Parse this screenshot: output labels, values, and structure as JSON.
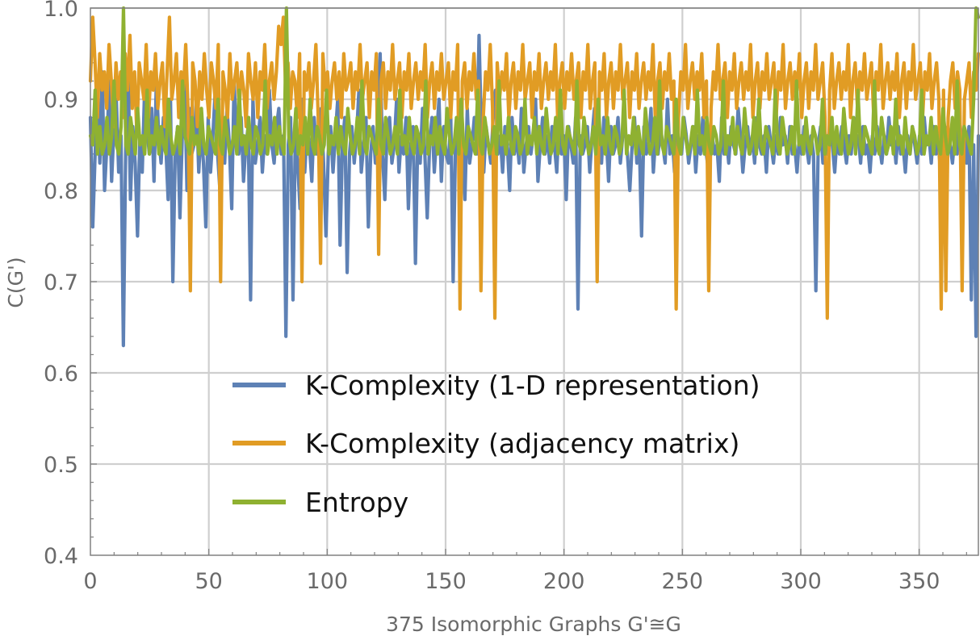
{
  "chart_data": {
    "type": "line",
    "xlabel": "375 Isomorphic Graphs G'≅G",
    "ylabel": "C(G')",
    "xlim": [
      0,
      375
    ],
    "ylim": [
      0.4,
      1.0
    ],
    "x_ticks": [
      0,
      50,
      100,
      150,
      200,
      250,
      300,
      350
    ],
    "y_ticks": [
      0.4,
      0.5,
      0.6,
      0.7,
      0.8,
      0.9,
      1.0
    ],
    "x_tick_labels": [
      "0",
      "50",
      "100",
      "150",
      "200",
      "250",
      "300",
      "350"
    ],
    "y_tick_labels": [
      "0.4",
      "0.5",
      "0.6",
      "0.7",
      "0.8",
      "0.9",
      "1.0"
    ],
    "grid": true,
    "legend_position": "lower-center inside plot",
    "series": [
      {
        "name": "K-Complexity (1-D representation)",
        "color": "#5e81b5",
        "values": [
          0.88,
          0.76,
          0.84,
          0.91,
          0.83,
          0.93,
          0.8,
          0.85,
          0.92,
          0.81,
          0.87,
          0.9,
          0.82,
          0.86,
          0.63,
          0.85,
          0.94,
          0.79,
          0.87,
          0.83,
          0.75,
          0.86,
          0.82,
          0.91,
          0.87,
          0.84,
          0.89,
          0.81,
          0.92,
          0.86,
          0.83,
          0.88,
          0.85,
          0.79,
          0.9,
          0.7,
          0.84,
          0.87,
          0.77,
          0.86,
          0.93,
          0.8,
          0.89,
          0.84,
          0.85,
          0.9,
          0.82,
          0.87,
          0.83,
          0.76,
          0.88,
          0.82,
          0.86,
          0.91,
          0.84,
          0.8,
          0.87,
          0.83,
          0.89,
          0.85,
          0.78,
          0.92,
          0.86,
          0.84,
          0.88,
          0.81,
          0.85,
          0.87,
          0.68,
          0.9,
          0.83,
          0.85,
          0.88,
          0.82,
          0.86,
          0.84,
          0.91,
          0.85,
          0.83,
          0.87,
          0.89,
          0.84,
          0.86,
          0.64,
          0.85,
          0.88,
          0.68,
          0.86,
          0.83,
          0.78,
          0.9,
          0.82,
          0.87,
          0.85,
          0.81,
          0.88,
          0.84,
          0.86,
          0.89,
          0.83,
          0.75,
          0.84,
          0.87,
          0.82,
          0.86,
          0.9,
          0.74,
          0.85,
          0.88,
          0.71,
          0.84,
          0.87,
          0.83,
          0.86,
          0.91,
          0.82,
          0.85,
          0.88,
          0.76,
          0.84,
          0.87,
          0.83,
          0.86,
          0.95,
          0.84,
          0.79,
          0.87,
          0.88,
          0.83,
          0.85,
          0.9,
          0.82,
          0.86,
          0.84,
          0.88,
          0.78,
          0.85,
          0.87,
          0.72,
          0.86,
          0.83,
          0.89,
          0.84,
          0.77,
          0.85,
          0.88,
          0.82,
          0.86,
          0.9,
          0.81,
          0.87,
          0.84,
          0.83,
          0.88,
          0.7,
          0.85,
          0.87,
          0.82,
          0.86,
          0.79,
          0.89,
          0.83,
          0.85,
          0.88,
          0.84,
          0.97,
          0.86,
          0.82,
          0.87,
          0.85,
          0.83,
          0.88,
          0.91,
          0.84,
          0.86,
          0.82,
          0.87,
          0.85,
          0.8,
          0.88,
          0.84,
          0.86,
          0.83,
          0.89,
          0.82,
          0.85,
          0.87,
          0.84,
          0.86,
          0.9,
          0.81,
          0.85,
          0.88,
          0.84,
          0.86,
          0.83,
          0.87,
          0.85,
          0.82,
          0.88,
          0.84,
          0.86,
          0.79,
          0.87,
          0.85,
          0.83,
          0.88,
          0.67,
          0.86,
          0.84,
          0.85,
          0.87,
          0.82,
          0.86,
          0.89,
          0.84,
          0.85,
          0.83,
          0.88,
          0.86,
          0.81,
          0.87,
          0.84,
          0.85,
          0.88,
          0.83,
          0.86,
          0.87,
          0.84,
          0.8,
          0.85,
          0.88,
          0.83,
          0.86,
          0.75,
          0.87,
          0.84,
          0.85,
          0.89,
          0.82,
          0.86,
          0.84,
          0.87,
          0.85,
          0.83,
          0.9,
          0.84,
          0.86,
          0.82,
          0.87,
          0.85,
          0.84,
          0.88,
          0.86,
          0.83,
          0.85,
          0.87,
          0.82,
          0.86,
          0.84,
          0.88,
          0.85,
          0.83,
          0.87,
          0.86,
          0.84,
          0.85,
          0.81,
          0.88,
          0.84,
          0.86,
          0.83,
          0.87,
          0.85,
          0.84,
          0.89,
          0.86,
          0.82,
          0.85,
          0.87,
          0.84,
          0.86,
          0.83,
          0.88,
          0.85,
          0.84,
          0.86,
          0.82,
          0.87,
          0.85,
          0.83,
          0.86,
          0.84,
          0.88,
          0.85,
          0.86,
          0.83,
          0.87,
          0.84,
          0.85,
          0.82,
          0.86,
          0.84,
          0.87,
          0.85,
          0.83,
          0.86,
          0.84,
          0.69,
          0.85,
          0.87,
          0.83,
          0.86,
          0.84,
          0.88,
          0.85,
          0.82,
          0.86,
          0.84,
          0.87,
          0.85,
          0.83,
          0.86,
          0.84,
          0.88,
          0.85,
          0.86,
          0.83,
          0.87,
          0.84,
          0.85,
          0.82,
          0.86,
          0.84,
          0.87,
          0.85,
          0.83,
          0.86,
          0.84,
          0.88,
          0.85,
          0.86,
          0.83,
          0.87,
          0.84,
          0.85,
          0.82,
          0.86,
          0.84,
          0.87,
          0.85,
          0.83,
          0.86,
          0.84,
          0.88,
          0.85,
          0.86,
          0.83,
          0.87,
          0.84,
          0.85,
          0.82,
          0.86,
          0.84,
          0.87,
          0.85,
          0.83,
          0.86,
          0.84,
          0.88,
          0.85,
          0.86,
          0.83,
          0.87,
          0.68,
          0.85,
          0.64,
          0.86
        ]
      },
      {
        "name": "K-Complexity (adjacency matrix)",
        "color": "#e19c24",
        "values": [
          0.92,
          0.99,
          0.94,
          0.88,
          0.95,
          0.91,
          0.93,
          0.89,
          0.96,
          0.92,
          0.87,
          0.94,
          0.9,
          0.93,
          0.88,
          0.95,
          0.91,
          0.97,
          0.89,
          0.93,
          0.86,
          0.94,
          0.92,
          0.9,
          0.96,
          0.88,
          0.93,
          0.91,
          0.95,
          0.89,
          0.92,
          0.94,
          0.87,
          0.93,
          0.99,
          0.9,
          0.92,
          0.95,
          0.88,
          0.93,
          0.91,
          0.96,
          0.89,
          0.69,
          0.94,
          0.92,
          0.87,
          0.93,
          0.9,
          0.95,
          0.91,
          0.88,
          0.94,
          0.92,
          0.89,
          0.96,
          0.7,
          0.93,
          0.91,
          0.88,
          0.95,
          0.9,
          0.92,
          0.94,
          0.89,
          0.93,
          0.91,
          0.87,
          0.95,
          0.92,
          0.9,
          0.94,
          0.88,
          0.93,
          0.91,
          0.96,
          0.89,
          0.92,
          0.94,
          0.9,
          0.93,
          0.98,
          0.96,
          0.99,
          0.91,
          0.94,
          0.89,
          0.93,
          0.92,
          0.88,
          0.95,
          0.7,
          0.93,
          0.91,
          0.94,
          0.89,
          0.92,
          0.96,
          0.88,
          0.72,
          0.95,
          0.91,
          0.93,
          0.89,
          0.92,
          0.94,
          0.9,
          0.93,
          0.88,
          0.95,
          0.91,
          0.92,
          0.94,
          0.89,
          0.93,
          0.91,
          0.96,
          0.9,
          0.92,
          0.94,
          0.88,
          0.93,
          0.91,
          0.95,
          0.73,
          0.92,
          0.94,
          0.89,
          0.93,
          0.91,
          0.96,
          0.9,
          0.92,
          0.94,
          0.88,
          0.93,
          0.91,
          0.95,
          0.89,
          0.92,
          0.94,
          0.9,
          0.93,
          0.91,
          0.96,
          0.88,
          0.92,
          0.94,
          0.89,
          0.93,
          0.91,
          0.95,
          0.9,
          0.92,
          0.94,
          0.88,
          0.93,
          0.91,
          0.96,
          0.67,
          0.92,
          0.94,
          0.89,
          0.93,
          0.91,
          0.95,
          0.9,
          0.92,
          0.69,
          0.88,
          0.93,
          0.91,
          0.96,
          0.89,
          0.66,
          0.94,
          0.9,
          0.93,
          0.91,
          0.95,
          0.88,
          0.92,
          0.94,
          0.89,
          0.93,
          0.91,
          0.96,
          0.9,
          0.92,
          0.94,
          0.88,
          0.93,
          0.91,
          0.95,
          0.89,
          0.92,
          0.94,
          0.9,
          0.93,
          0.91,
          0.96,
          0.88,
          0.92,
          0.94,
          0.89,
          0.93,
          0.91,
          0.95,
          0.9,
          0.92,
          0.94,
          0.88,
          0.93,
          0.91,
          0.96,
          0.89,
          0.92,
          0.94,
          0.7,
          0.93,
          0.91,
          0.95,
          0.88,
          0.92,
          0.94,
          0.89,
          0.93,
          0.91,
          0.96,
          0.9,
          0.92,
          0.94,
          0.88,
          0.93,
          0.91,
          0.95,
          0.89,
          0.92,
          0.94,
          0.9,
          0.93,
          0.91,
          0.96,
          0.88,
          0.92,
          0.94,
          0.89,
          0.93,
          0.91,
          0.95,
          0.9,
          0.92,
          0.67,
          0.88,
          0.93,
          0.91,
          0.96,
          0.89,
          0.92,
          0.94,
          0.9,
          0.93,
          0.91,
          0.95,
          0.88,
          0.92,
          0.69,
          0.89,
          0.93,
          0.91,
          0.96,
          0.9,
          0.92,
          0.94,
          0.88,
          0.93,
          0.91,
          0.95,
          0.89,
          0.92,
          0.94,
          0.9,
          0.93,
          0.91,
          0.96,
          0.88,
          0.92,
          0.94,
          0.89,
          0.93,
          0.91,
          0.95,
          0.9,
          0.92,
          0.94,
          0.88,
          0.93,
          0.91,
          0.96,
          0.89,
          0.92,
          0.94,
          0.9,
          0.93,
          0.91,
          0.95,
          0.88,
          0.92,
          0.94,
          0.89,
          0.93,
          0.91,
          0.96,
          0.9,
          0.92,
          0.94,
          0.88,
          0.66,
          0.91,
          0.95,
          0.89,
          0.92,
          0.94,
          0.9,
          0.93,
          0.91,
          0.96,
          0.88,
          0.92,
          0.94,
          0.89,
          0.93,
          0.91,
          0.95,
          0.9,
          0.92,
          0.94,
          0.88,
          0.93,
          0.91,
          0.96,
          0.89,
          0.92,
          0.94,
          0.9,
          0.93,
          0.91,
          0.95,
          0.88,
          0.92,
          0.94,
          0.89,
          0.93,
          0.91,
          0.96,
          0.9,
          0.92,
          0.94,
          0.88,
          0.93,
          0.91,
          0.95,
          0.89,
          0.92,
          0.94,
          0.9,
          0.67,
          0.91,
          0.69,
          0.88,
          0.92,
          0.94,
          0.89,
          0.93,
          0.91,
          0.69,
          0.9,
          0.92,
          0.94,
          0.88,
          0.93,
          0.91,
          0.95
        ]
      },
      {
        "name": "Entropy",
        "color": "#8fb131",
        "values": [
          0.86,
          0.85,
          0.91,
          0.84,
          0.87,
          0.84,
          0.85,
          0.88,
          0.84,
          0.86,
          0.92,
          0.85,
          0.84,
          0.87,
          1.0,
          0.85,
          0.84,
          0.88,
          0.86,
          0.84,
          0.89,
          0.85,
          0.86,
          0.84,
          0.91,
          0.84,
          0.86,
          0.85,
          0.88,
          0.84,
          0.87,
          0.85,
          0.84,
          0.9,
          0.86,
          0.84,
          0.85,
          0.87,
          0.84,
          0.92,
          0.86,
          0.85,
          0.84,
          0.88,
          0.85,
          0.86,
          0.84,
          0.89,
          0.85,
          0.84,
          0.87,
          0.86,
          0.85,
          0.84,
          0.9,
          0.85,
          0.84,
          0.88,
          0.86,
          0.84,
          0.85,
          0.87,
          0.84,
          0.91,
          0.85,
          0.86,
          0.84,
          0.88,
          0.85,
          0.84,
          0.87,
          0.86,
          0.84,
          0.85,
          0.92,
          0.84,
          0.86,
          0.85,
          0.88,
          0.84,
          0.87,
          0.85,
          0.84,
          1.0,
          0.86,
          0.84,
          0.85,
          0.89,
          0.84,
          0.86,
          0.85,
          0.88,
          0.84,
          0.9,
          0.85,
          0.84,
          0.87,
          0.86,
          0.84,
          0.85,
          0.91,
          0.84,
          0.86,
          0.85,
          0.88,
          0.84,
          0.87,
          0.85,
          0.84,
          0.89,
          0.86,
          0.84,
          0.85,
          0.88,
          0.84,
          0.92,
          0.85,
          0.84,
          0.87,
          0.86,
          0.85,
          0.84,
          0.9,
          0.85,
          0.84,
          0.88,
          0.86,
          0.84,
          0.85,
          0.87,
          0.84,
          0.91,
          0.85,
          0.86,
          0.84,
          0.88,
          0.85,
          0.84,
          0.87,
          0.86,
          0.84,
          0.85,
          0.92,
          0.84,
          0.86,
          0.85,
          0.88,
          0.84,
          0.87,
          0.85,
          0.84,
          0.89,
          0.86,
          0.84,
          0.85,
          0.88,
          0.84,
          0.9,
          0.85,
          0.84,
          0.87,
          0.86,
          0.85,
          0.84,
          0.91,
          0.85,
          0.84,
          0.88,
          0.86,
          0.84,
          0.85,
          0.87,
          0.84,
          0.92,
          0.85,
          0.86,
          0.84,
          0.88,
          0.85,
          0.84,
          0.87,
          0.86,
          0.84,
          0.85,
          0.9,
          0.84,
          0.86,
          0.85,
          0.88,
          0.84,
          0.87,
          0.85,
          0.84,
          0.89,
          0.86,
          0.84,
          0.85,
          0.88,
          0.84,
          0.91,
          0.85,
          0.84,
          0.87,
          0.86,
          0.85,
          0.84,
          0.92,
          0.85,
          0.84,
          0.88,
          0.86,
          0.84,
          0.85,
          0.87,
          0.84,
          0.9,
          0.85,
          0.86,
          0.84,
          0.88,
          0.85,
          0.84,
          0.87,
          0.86,
          0.84,
          0.85,
          0.91,
          0.84,
          0.86,
          0.85,
          0.88,
          0.84,
          0.87,
          0.85,
          0.84,
          0.89,
          0.86,
          0.84,
          0.85,
          0.88,
          0.84,
          0.92,
          0.85,
          0.84,
          0.87,
          0.86,
          0.85,
          0.84,
          0.9,
          0.85,
          0.84,
          0.88,
          0.86,
          0.84,
          0.85,
          0.87,
          0.84,
          0.91,
          0.85,
          0.86,
          0.84,
          0.88,
          0.85,
          0.84,
          0.87,
          0.86,
          0.84,
          0.85,
          0.92,
          0.84,
          0.86,
          0.85,
          0.88,
          0.84,
          0.87,
          0.85,
          0.84,
          0.89,
          0.86,
          0.84,
          0.85,
          0.88,
          0.84,
          0.9,
          0.85,
          0.84,
          0.87,
          0.86,
          0.85,
          0.84,
          0.91,
          0.85,
          0.84,
          0.88,
          0.86,
          0.84,
          0.85,
          0.87,
          0.84,
          0.92,
          0.85,
          0.86,
          0.84,
          0.88,
          0.85,
          0.84,
          0.87,
          0.86,
          0.84,
          0.85,
          0.9,
          0.84,
          0.86,
          0.85,
          0.88,
          0.84,
          0.87,
          0.85,
          0.84,
          0.89,
          0.86,
          0.84,
          0.85,
          0.88,
          0.84,
          0.91,
          0.85,
          0.84,
          0.87,
          0.86,
          0.85,
          0.84,
          0.92,
          0.85,
          0.84,
          0.88,
          0.86,
          0.84,
          0.85,
          0.87,
          0.84,
          0.9,
          0.85,
          0.86,
          0.84,
          0.88,
          0.85,
          0.84,
          0.87,
          0.86,
          0.84,
          0.85,
          0.91,
          0.84,
          0.86,
          0.85,
          0.88,
          0.84,
          0.87,
          0.85,
          0.84,
          0.89,
          0.86,
          0.84,
          0.85,
          0.88,
          0.84,
          0.92,
          0.85,
          0.84,
          0.87,
          0.86,
          0.85,
          0.84,
          0.9,
          1.0,
          0.99
        ]
      }
    ]
  }
}
